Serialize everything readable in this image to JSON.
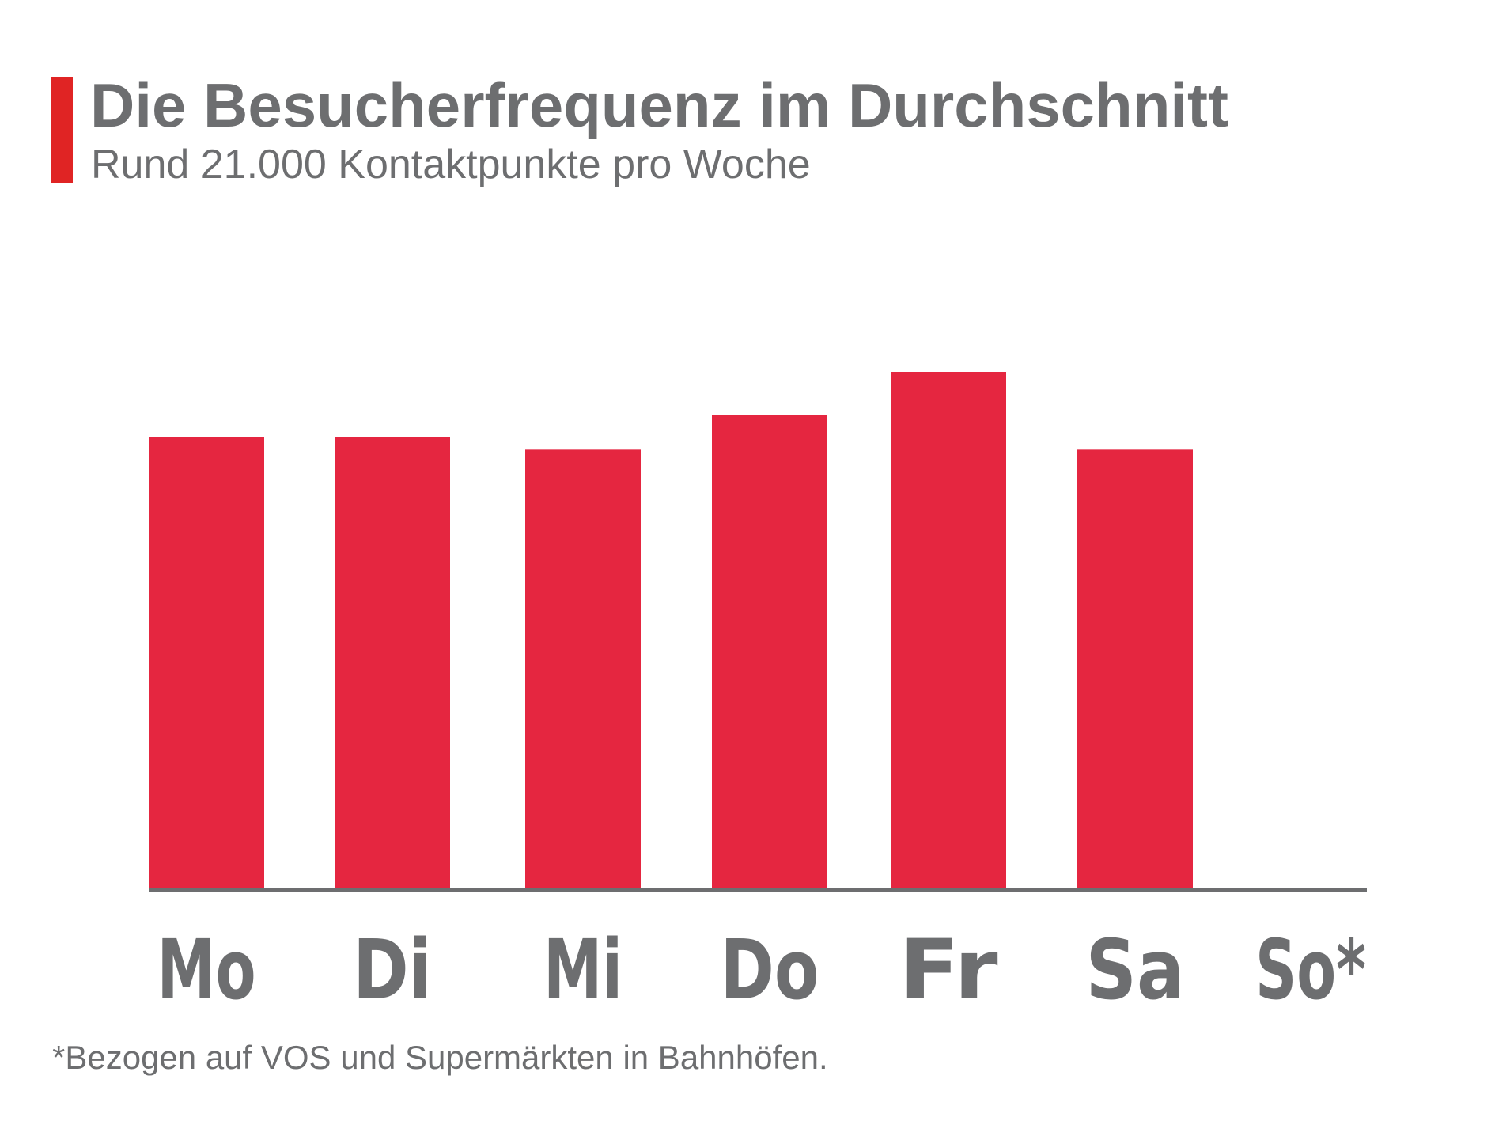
{
  "header": {
    "title": "Die Besucherfrequenz im Durchschnitt",
    "subtitle": "Rund 21.000 Kontaktpunkte pro Woche"
  },
  "footnote": "*Bezogen auf VOS und Supermärkten in Bahnhöfen.",
  "colors": {
    "bar": "#e52640",
    "accent": "#e02424",
    "text": "#6d6e70",
    "axis": "#6d6e70"
  },
  "chart_data": {
    "type": "bar",
    "title": "Die Besucherfrequenz im Durchschnitt",
    "subtitle": "Rund 21.000 Kontaktpunkte pro Woche",
    "categories": [
      "Mo",
      "Di",
      "Mi",
      "Do",
      "Fr",
      "Sa",
      "So*"
    ],
    "values": [
      3000,
      3000,
      2915,
      3145,
      3430,
      2915,
      0
    ],
    "xlabel": "",
    "ylabel": "",
    "ylim": [
      0,
      3430
    ],
    "grid": false,
    "legend": "none"
  }
}
